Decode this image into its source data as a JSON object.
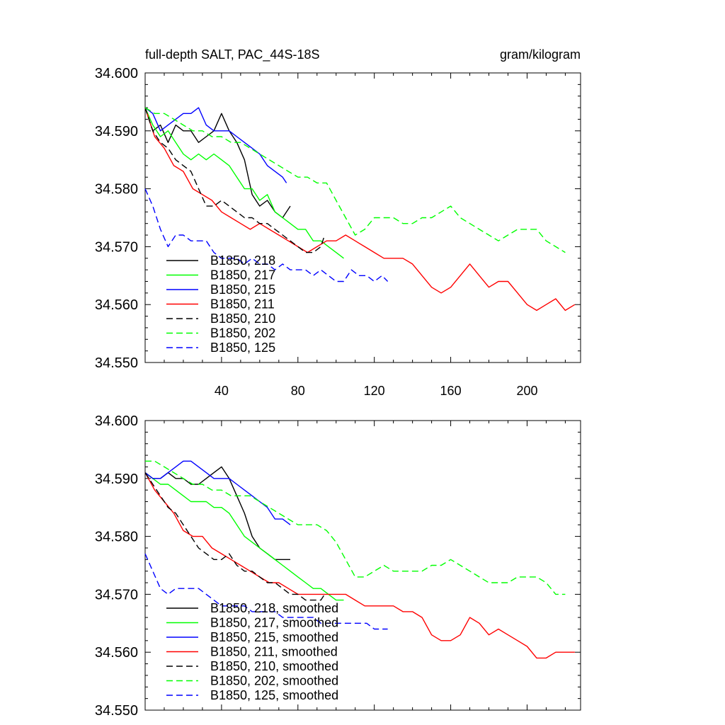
{
  "chart_data": [
    {
      "type": "line",
      "title_left": "full-depth SALT, PAC_44S-18S",
      "title_right": "gram/kilogram",
      "xlabel": "",
      "ylabel": "",
      "xlim": [
        0,
        228
      ],
      "ylim": [
        34.55,
        34.6
      ],
      "x_ticks": [
        40,
        80,
        120,
        160,
        200
      ],
      "y_ticks": [
        "34.600",
        "34.590",
        "34.580",
        "34.570",
        "34.560",
        "34.550"
      ],
      "grid": false,
      "legend_position": "bottom-left",
      "series": [
        {
          "name": "B1850, 218",
          "color": "#000000",
          "dash": "solid",
          "x": [
            0,
            4,
            8,
            12,
            16,
            20,
            24,
            28,
            32,
            36,
            40,
            44,
            48,
            52,
            56,
            60,
            64,
            68,
            72,
            76
          ],
          "y": [
            34.594,
            34.59,
            34.591,
            34.588,
            34.591,
            34.59,
            34.59,
            34.588,
            34.589,
            34.59,
            34.593,
            34.59,
            34.588,
            34.585,
            34.579,
            34.577,
            34.578,
            34.576,
            34.575,
            34.577
          ]
        },
        {
          "name": "B1850, 217",
          "color": "#00ff00",
          "dash": "solid",
          "x": [
            0,
            4,
            8,
            12,
            16,
            20,
            24,
            28,
            32,
            36,
            40,
            44,
            48,
            52,
            56,
            60,
            64,
            68,
            72,
            76,
            80,
            84,
            88,
            92,
            96,
            100,
            104
          ],
          "y": [
            34.594,
            34.591,
            34.589,
            34.59,
            34.588,
            34.586,
            34.585,
            34.586,
            34.585,
            34.586,
            34.585,
            34.584,
            34.582,
            34.58,
            34.58,
            34.578,
            34.579,
            34.576,
            34.575,
            34.574,
            34.573,
            34.573,
            34.571,
            34.571,
            34.57,
            34.569,
            34.568
          ]
        },
        {
          "name": "B1850, 215",
          "color": "#0000ff",
          "dash": "solid",
          "x": [
            0,
            4,
            8,
            12,
            16,
            20,
            24,
            28,
            32,
            36,
            40,
            44,
            48,
            52,
            56,
            60,
            64,
            68,
            72,
            74
          ],
          "y": [
            34.594,
            34.593,
            34.59,
            34.591,
            34.592,
            34.593,
            34.593,
            34.594,
            34.591,
            34.59,
            34.59,
            34.59,
            34.589,
            34.588,
            34.587,
            34.586,
            34.584,
            34.583,
            34.582,
            34.581
          ]
        },
        {
          "name": "B1850, 211",
          "color": "#ff0000",
          "dash": "solid",
          "x": [
            0,
            5,
            10,
            15,
            20,
            25,
            30,
            35,
            40,
            45,
            50,
            55,
            60,
            65,
            70,
            75,
            80,
            85,
            90,
            95,
            100,
            105,
            110,
            115,
            120,
            125,
            130,
            135,
            140,
            145,
            150,
            155,
            160,
            165,
            170,
            175,
            180,
            185,
            190,
            195,
            200,
            205,
            210,
            215,
            220,
            225
          ],
          "y": [
            34.594,
            34.589,
            34.587,
            34.584,
            34.583,
            34.58,
            34.579,
            34.578,
            34.576,
            34.575,
            34.574,
            34.573,
            34.574,
            34.573,
            34.572,
            34.571,
            34.57,
            34.569,
            34.57,
            34.571,
            34.571,
            34.572,
            34.571,
            34.57,
            34.569,
            34.568,
            34.568,
            34.568,
            34.567,
            34.565,
            34.563,
            34.562,
            34.563,
            34.565,
            34.567,
            34.565,
            34.563,
            34.564,
            34.564,
            34.562,
            34.56,
            34.559,
            34.56,
            34.561,
            34.559,
            34.56
          ]
        },
        {
          "name": "B1850, 210",
          "color": "#000000",
          "dash": "dashed",
          "x": [
            0,
            4,
            8,
            12,
            16,
            20,
            24,
            28,
            32,
            36,
            40,
            44,
            48,
            52,
            56,
            60,
            64,
            68,
            72,
            76,
            80,
            84,
            88,
            92,
            94
          ],
          "y": [
            34.594,
            34.59,
            34.588,
            34.587,
            34.585,
            34.584,
            34.583,
            34.58,
            34.577,
            34.577,
            34.578,
            34.577,
            34.576,
            34.575,
            34.575,
            34.574,
            34.574,
            34.573,
            34.572,
            34.571,
            34.57,
            34.569,
            34.569,
            34.57,
            34.572
          ]
        },
        {
          "name": "B1850, 202",
          "color": "#00ff00",
          "dash": "dashed",
          "x": [
            0,
            5,
            10,
            15,
            20,
            25,
            30,
            35,
            40,
            45,
            50,
            55,
            60,
            65,
            70,
            75,
            80,
            85,
            90,
            95,
            100,
            105,
            110,
            115,
            120,
            125,
            130,
            135,
            140,
            145,
            150,
            155,
            160,
            165,
            170,
            175,
            180,
            185,
            190,
            195,
            200,
            205,
            210,
            215,
            220
          ],
          "y": [
            34.594,
            34.593,
            34.593,
            34.592,
            34.591,
            34.59,
            34.59,
            34.589,
            34.589,
            34.588,
            34.588,
            34.587,
            34.586,
            34.585,
            34.584,
            34.583,
            34.582,
            34.582,
            34.581,
            34.581,
            34.578,
            34.575,
            34.572,
            34.573,
            34.575,
            34.575,
            34.575,
            34.574,
            34.574,
            34.575,
            34.575,
            34.576,
            34.577,
            34.575,
            34.574,
            34.573,
            34.572,
            34.571,
            34.572,
            34.573,
            34.573,
            34.573,
            34.571,
            34.57,
            34.569
          ]
        },
        {
          "name": "B1850, 125",
          "color": "#0000ff",
          "dash": "dashed",
          "x": [
            0,
            4,
            8,
            12,
            16,
            20,
            24,
            28,
            32,
            36,
            40,
            44,
            48,
            52,
            56,
            60,
            64,
            68,
            72,
            76,
            80,
            84,
            88,
            92,
            96,
            100,
            104,
            108,
            112,
            116,
            120,
            124,
            127
          ],
          "y": [
            34.58,
            34.577,
            34.573,
            34.57,
            34.572,
            34.572,
            34.571,
            34.571,
            34.571,
            34.569,
            34.568,
            34.568,
            34.568,
            34.567,
            34.568,
            34.567,
            34.567,
            34.566,
            34.567,
            34.566,
            34.566,
            34.566,
            34.565,
            34.566,
            34.565,
            34.564,
            34.564,
            34.566,
            34.565,
            34.565,
            34.564,
            34.565,
            34.564
          ]
        }
      ]
    },
    {
      "type": "line",
      "xlabel": "",
      "ylabel": "",
      "xlim": [
        0,
        228
      ],
      "ylim": [
        34.55,
        34.6
      ],
      "y_ticks": [
        "34.600",
        "34.590",
        "34.580",
        "34.570",
        "34.560",
        "34.550"
      ],
      "grid": false,
      "legend_position": "bottom-left",
      "series": [
        {
          "name": "B1850, 218, smoothed",
          "color": "#000000",
          "dash": "solid",
          "x": [
            0,
            4,
            8,
            12,
            16,
            20,
            24,
            28,
            32,
            36,
            40,
            44,
            48,
            52,
            56,
            60,
            64,
            68,
            72,
            76
          ],
          "y": [
            34.591,
            34.59,
            34.59,
            34.591,
            34.59,
            34.59,
            34.589,
            34.589,
            34.59,
            34.591,
            34.592,
            34.59,
            34.587,
            34.584,
            34.58,
            34.578,
            34.577,
            34.576,
            34.576,
            34.576
          ]
        },
        {
          "name": "B1850, 217, smoothed",
          "color": "#00ff00",
          "dash": "solid",
          "x": [
            0,
            4,
            8,
            12,
            16,
            20,
            24,
            28,
            32,
            36,
            40,
            44,
            48,
            52,
            56,
            60,
            64,
            68,
            72,
            76,
            80,
            84,
            88,
            92,
            96,
            100,
            104
          ],
          "y": [
            34.591,
            34.59,
            34.589,
            34.589,
            34.588,
            34.587,
            34.586,
            34.586,
            34.586,
            34.585,
            34.585,
            34.584,
            34.582,
            34.58,
            34.579,
            34.578,
            34.577,
            34.576,
            34.575,
            34.574,
            34.573,
            34.572,
            34.571,
            34.571,
            34.57,
            34.569,
            34.569
          ]
        },
        {
          "name": "B1850, 215, smoothed",
          "color": "#0000ff",
          "dash": "solid",
          "x": [
            0,
            4,
            8,
            12,
            16,
            20,
            24,
            28,
            32,
            36,
            40,
            44,
            48,
            52,
            56,
            60,
            64,
            68,
            72,
            76
          ],
          "y": [
            34.591,
            34.59,
            34.59,
            34.591,
            34.592,
            34.593,
            34.593,
            34.592,
            34.591,
            34.59,
            34.59,
            34.59,
            34.589,
            34.588,
            34.587,
            34.586,
            34.585,
            34.583,
            34.583,
            34.582
          ]
        },
        {
          "name": "B1850, 211, smoothed",
          "color": "#ff0000",
          "dash": "solid",
          "x": [
            0,
            5,
            10,
            15,
            20,
            25,
            30,
            35,
            40,
            45,
            50,
            55,
            60,
            65,
            70,
            75,
            80,
            85,
            90,
            95,
            100,
            105,
            110,
            115,
            120,
            125,
            130,
            135,
            140,
            145,
            150,
            155,
            160,
            165,
            170,
            175,
            180,
            185,
            190,
            195,
            200,
            205,
            210,
            215,
            220,
            225
          ],
          "y": [
            34.591,
            34.588,
            34.586,
            34.584,
            34.581,
            34.58,
            34.58,
            34.578,
            34.577,
            34.576,
            34.575,
            34.574,
            34.573,
            34.572,
            34.572,
            34.571,
            34.57,
            34.57,
            34.57,
            34.57,
            34.57,
            34.57,
            34.569,
            34.568,
            34.568,
            34.568,
            34.568,
            34.567,
            34.567,
            34.566,
            34.563,
            34.562,
            34.562,
            34.563,
            34.566,
            34.565,
            34.563,
            34.564,
            34.563,
            34.562,
            34.561,
            34.559,
            34.559,
            34.56,
            34.56,
            34.56
          ]
        },
        {
          "name": "B1850, 210, smoothed",
          "color": "#000000",
          "dash": "dashed",
          "x": [
            0,
            4,
            8,
            12,
            16,
            20,
            24,
            28,
            32,
            36,
            40,
            44,
            48,
            52,
            56,
            60,
            64,
            68,
            72,
            76,
            80,
            84,
            88,
            92,
            94
          ],
          "y": [
            34.591,
            34.589,
            34.587,
            34.585,
            34.584,
            34.582,
            34.58,
            34.578,
            34.577,
            34.576,
            34.576,
            34.577,
            34.575,
            34.574,
            34.574,
            34.573,
            34.572,
            34.572,
            34.571,
            34.57,
            34.57,
            34.569,
            34.569,
            34.569,
            34.57
          ]
        },
        {
          "name": "B1850, 202, smoothed",
          "color": "#00ff00",
          "dash": "dashed",
          "x": [
            0,
            5,
            10,
            15,
            20,
            25,
            30,
            35,
            40,
            45,
            50,
            55,
            60,
            65,
            70,
            75,
            80,
            85,
            90,
            95,
            100,
            105,
            110,
            115,
            120,
            125,
            130,
            135,
            140,
            145,
            150,
            155,
            160,
            165,
            170,
            175,
            180,
            185,
            190,
            195,
            200,
            205,
            210,
            215,
            220
          ],
          "y": [
            34.593,
            34.593,
            34.592,
            34.591,
            34.59,
            34.589,
            34.589,
            34.588,
            34.588,
            34.587,
            34.587,
            34.587,
            34.586,
            34.585,
            34.584,
            34.583,
            34.582,
            34.582,
            34.582,
            34.581,
            34.579,
            34.576,
            34.573,
            34.573,
            34.574,
            34.575,
            34.574,
            34.574,
            34.574,
            34.574,
            34.575,
            34.575,
            34.576,
            34.575,
            34.574,
            34.573,
            34.572,
            34.572,
            34.572,
            34.573,
            34.573,
            34.573,
            34.572,
            34.57,
            34.57
          ]
        },
        {
          "name": "B1850, 125, smoothed",
          "color": "#0000ff",
          "dash": "dashed",
          "x": [
            0,
            4,
            8,
            12,
            16,
            20,
            24,
            28,
            32,
            36,
            40,
            44,
            48,
            52,
            56,
            60,
            64,
            68,
            72,
            76,
            80,
            84,
            88,
            92,
            96,
            100,
            104,
            108,
            112,
            116,
            120,
            124,
            127
          ],
          "y": [
            34.577,
            34.574,
            34.571,
            34.57,
            34.571,
            34.571,
            34.571,
            34.571,
            34.57,
            34.569,
            34.568,
            34.568,
            34.568,
            34.568,
            34.567,
            34.567,
            34.567,
            34.567,
            34.566,
            34.566,
            34.566,
            34.566,
            34.566,
            34.565,
            34.565,
            34.565,
            34.565,
            34.565,
            34.565,
            34.565,
            34.564,
            34.564,
            34.564
          ]
        }
      ]
    }
  ]
}
